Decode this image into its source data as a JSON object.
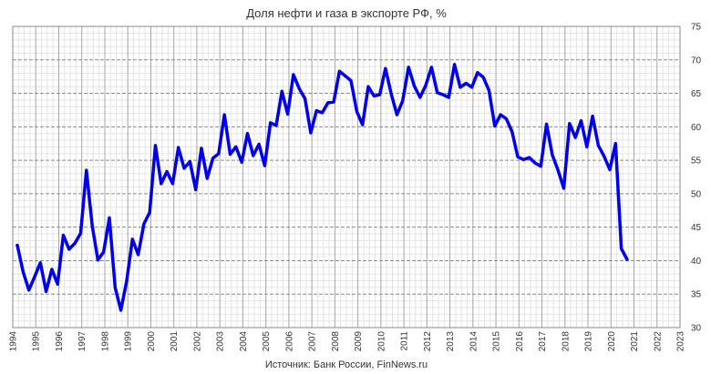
{
  "chart_data": {
    "type": "line",
    "title": "Доля нефти и газа в экспорте РФ, %",
    "source": "Источник: Банк России, FinNews.ru",
    "xlabel": "",
    "ylabel": "",
    "xlim": [
      1994,
      2023
    ],
    "ylim": [
      30,
      75
    ],
    "grid": true,
    "y_ticks": [
      "30",
      "35",
      "40",
      "45",
      "50",
      "55",
      "60",
      "65",
      "70",
      "75"
    ],
    "x_ticks": [
      "1994",
      "1995",
      "1996",
      "1997",
      "1998",
      "1999",
      "2000",
      "2001",
      "2002",
      "2003",
      "2004",
      "2005",
      "2006",
      "2007",
      "2008",
      "2009",
      "2010",
      "2011",
      "2012",
      "2013",
      "2014",
      "2015",
      "2016",
      "2017",
      "2018",
      "2019",
      "2020",
      "2021",
      "2022",
      "2023"
    ],
    "line_color": "#0000ee",
    "series": [
      {
        "x": [
          1994.2,
          1994.45,
          1994.7,
          1994.95,
          1995.2,
          1995.45,
          1995.7,
          1995.95,
          1996.2,
          1996.45,
          1996.7,
          1996.95,
          1997.2,
          1997.45,
          1997.7,
          1997.95,
          1998.2,
          1998.45,
          1998.7,
          1998.95,
          1999.2,
          1999.45,
          1999.7,
          1999.95,
          2000.2,
          2000.45,
          2000.7,
          2000.95,
          2001.2,
          2001.45,
          2001.7,
          2001.95,
          2002.2,
          2002.45,
          2002.7,
          2002.95,
          2003.2,
          2003.45,
          2003.7,
          2003.95,
          2004.2,
          2004.45,
          2004.7,
          2004.95,
          2005.2,
          2005.45,
          2005.7,
          2005.95,
          2006.2,
          2006.45,
          2006.7,
          2006.95,
          2007.2,
          2007.45,
          2007.7,
          2007.95,
          2008.2,
          2008.45,
          2008.7,
          2008.95,
          2009.2,
          2009.45,
          2009.7,
          2009.95,
          2010.2,
          2010.45,
          2010.7,
          2010.95,
          2011.2,
          2011.45,
          2011.7,
          2011.95,
          2012.2,
          2012.45,
          2012.7,
          2012.95,
          2013.2,
          2013.45,
          2013.7,
          2013.95,
          2014.2,
          2014.45,
          2014.7,
          2014.95,
          2015.2,
          2015.45,
          2015.7,
          2015.95,
          2016.2,
          2016.45,
          2016.7,
          2016.95,
          2017.2,
          2017.45,
          2017.7,
          2017.95,
          2018.2,
          2018.45,
          2018.7,
          2018.95,
          2019.2,
          2019.45,
          2019.7,
          2019.95,
          2020.2,
          2020.45,
          2020.7
        ],
        "values": [
          42.3,
          38.3,
          35.6,
          37.6,
          39.7,
          35.4,
          38.7,
          36.5,
          43.8,
          41.7,
          42.6,
          44.1,
          53.5,
          45.3,
          40.1,
          41.3,
          46.4,
          36.0,
          32.6,
          36.9,
          43.2,
          40.9,
          45.5,
          47.2,
          57.2,
          51.5,
          53.3,
          51.5,
          56.9,
          53.8,
          54.8,
          50.6,
          56.8,
          52.3,
          55.3,
          56.0,
          61.8,
          55.9,
          57.0,
          54.7,
          59.0,
          55.7,
          57.4,
          54.2,
          60.6,
          60.2,
          65.3,
          61.9,
          67.8,
          65.7,
          64.2,
          59.1,
          62.4,
          62.1,
          63.6,
          63.7,
          68.3,
          67.6,
          66.9,
          62.3,
          60.3,
          66.0,
          64.6,
          64.8,
          68.7,
          64.9,
          61.8,
          63.9,
          68.9,
          66.1,
          64.4,
          66.2,
          68.9,
          65.1,
          64.8,
          64.4,
          69.3,
          65.9,
          66.5,
          65.9,
          68.1,
          67.4,
          65.4,
          60.1,
          61.8,
          61.2,
          59.3,
          55.5,
          55.1,
          55.4,
          54.6,
          54.1,
          60.4,
          55.8,
          53.5,
          50.8,
          60.5,
          58.4,
          60.9,
          57.0,
          61.6,
          57.2,
          55.6,
          53.6,
          57.5,
          41.8,
          40.2
        ]
      }
    ]
  }
}
